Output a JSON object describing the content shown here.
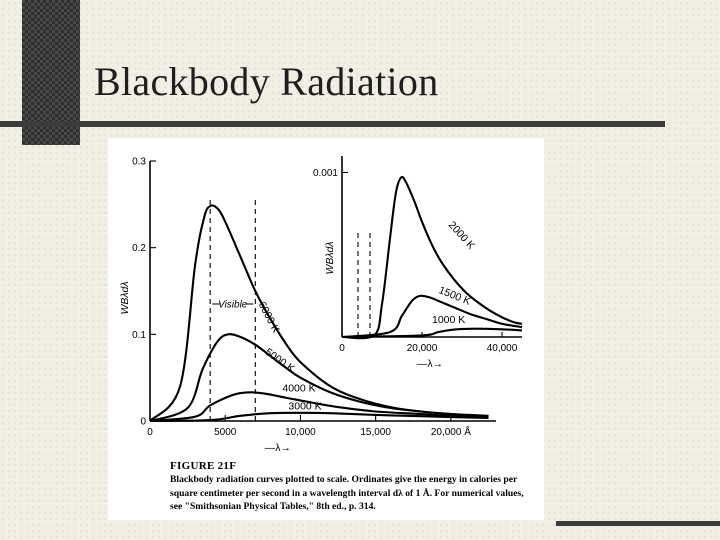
{
  "slide": {
    "title": "Blackbody Radiation",
    "colors": {
      "background": "#f1efe3",
      "accent": "#3c3c3c",
      "figure_bg": "#ffffff"
    }
  },
  "figure": {
    "label": "FIGURE 21F",
    "caption": "Blackbody radiation curves plotted to scale. Ordinates give the energy in calories per square centimeter per second in a wavelength interval dλ of 1 Å. For numerical values, see \"Smithsonian Physical Tables,\" 8th ed., p. 314."
  },
  "chart_data": [
    {
      "type": "line",
      "title": "",
      "xlabel": "—λ→",
      "ylabel": "WBλdλ",
      "xlim": [
        0,
        23000
      ],
      "ylim": [
        0,
        0.3
      ],
      "x_ticks": [
        {
          "value": 0,
          "label": "0"
        },
        {
          "value": 5000,
          "label": "5000"
        },
        {
          "value": 10000,
          "label": "10,000"
        },
        {
          "value": 15000,
          "label": "15,000"
        },
        {
          "value": 20000,
          "label": "20,000 Å"
        }
      ],
      "y_ticks": [
        {
          "value": 0,
          "label": "0"
        },
        {
          "value": 0.1,
          "label": "0.1"
        },
        {
          "value": 0.2,
          "label": "0.2"
        },
        {
          "value": 0.3,
          "label": "0.3"
        }
      ],
      "annotations": [
        {
          "text": "Visible",
          "range": [
            4000,
            7000
          ]
        }
      ],
      "series": [
        {
          "name": "6000 K",
          "values": [
            [
              0,
              0
            ],
            [
              2000,
              0.04
            ],
            [
              3000,
              0.18
            ],
            [
              3600,
              0.235
            ],
            [
              4000,
              0.248
            ],
            [
              4500,
              0.245
            ],
            [
              5000,
              0.23
            ],
            [
              6000,
              0.19
            ],
            [
              7000,
              0.15
            ],
            [
              8000,
              0.118
            ],
            [
              9000,
              0.09
            ],
            [
              10000,
              0.068
            ],
            [
              12000,
              0.04
            ],
            [
              14000,
              0.025
            ],
            [
              16000,
              0.016
            ],
            [
              18000,
              0.011
            ],
            [
              20000,
              0.008
            ],
            [
              22500,
              0.005
            ]
          ]
        },
        {
          "name": "5000 K",
          "values": [
            [
              0,
              0
            ],
            [
              2500,
              0.015
            ],
            [
              3500,
              0.06
            ],
            [
              4500,
              0.092
            ],
            [
              5200,
              0.1
            ],
            [
              6000,
              0.097
            ],
            [
              7000,
              0.088
            ],
            [
              8000,
              0.075
            ],
            [
              9000,
              0.062
            ],
            [
              10000,
              0.05
            ],
            [
              12000,
              0.033
            ],
            [
              14000,
              0.022
            ],
            [
              16000,
              0.015
            ],
            [
              18000,
              0.011
            ],
            [
              20000,
              0.008
            ],
            [
              22500,
              0.006
            ]
          ]
        },
        {
          "name": "4000 K",
          "values": [
            [
              0,
              0
            ],
            [
              3000,
              0.005
            ],
            [
              4000,
              0.018
            ],
            [
              5500,
              0.03
            ],
            [
              6500,
              0.033
            ],
            [
              7500,
              0.032
            ],
            [
              9000,
              0.027
            ],
            [
              10500,
              0.022
            ],
            [
              12500,
              0.016
            ],
            [
              15000,
              0.011
            ],
            [
              18000,
              0.008
            ],
            [
              20000,
              0.006
            ],
            [
              22500,
              0.005
            ]
          ]
        },
        {
          "name": "3000 K",
          "values": [
            [
              0,
              0
            ],
            [
              4000,
              0.001
            ],
            [
              6000,
              0.006
            ],
            [
              8000,
              0.009
            ],
            [
              10000,
              0.0095
            ],
            [
              12000,
              0.009
            ],
            [
              15000,
              0.007
            ],
            [
              18000,
              0.0055
            ],
            [
              20000,
              0.0045
            ],
            [
              22500,
              0.0035
            ]
          ]
        }
      ]
    },
    {
      "type": "line",
      "title": "",
      "xlabel": "—λ→",
      "ylabel": "WBλdλ",
      "xlim": [
        0,
        45000
      ],
      "ylim": [
        0,
        0.0011
      ],
      "x_ticks": [
        {
          "value": 0,
          "label": "0"
        },
        {
          "value": 20000,
          "label": "20,000"
        },
        {
          "value": 40000,
          "label": "40,000"
        }
      ],
      "y_ticks": [
        {
          "value": 0.001,
          "label": "0.001"
        }
      ],
      "annotations": [
        {
          "text": "Visible",
          "range": [
            4000,
            7000
          ]
        }
      ],
      "series": [
        {
          "name": "2000 K",
          "values": [
            [
              0,
              0
            ],
            [
              8000,
              1e-05
            ],
            [
              10000,
              0.0002
            ],
            [
              12000,
              0.0006
            ],
            [
              13500,
              0.00088
            ],
            [
              14800,
              0.00097
            ],
            [
              16000,
              0.00094
            ],
            [
              18000,
              0.00083
            ],
            [
              20000,
              0.0007
            ],
            [
              22500,
              0.00056
            ],
            [
              25000,
              0.00045
            ],
            [
              28000,
              0.00035
            ],
            [
              31000,
              0.00027
            ],
            [
              34000,
              0.00021
            ],
            [
              37000,
              0.00016
            ],
            [
              40000,
              0.00012
            ],
            [
              43000,
              9e-05
            ],
            [
              45000,
              8e-05
            ]
          ]
        },
        {
          "name": "1500 K",
          "values": [
            [
              0,
              0
            ],
            [
              12000,
              3e-05
            ],
            [
              15000,
              0.00013
            ],
            [
              17500,
              0.00022
            ],
            [
              19500,
              0.00025
            ],
            [
              22000,
              0.00024
            ],
            [
              25000,
              0.00021
            ],
            [
              28000,
              0.00018
            ],
            [
              32000,
              0.00014
            ],
            [
              36000,
              0.00011
            ],
            [
              40000,
              8e-05
            ],
            [
              45000,
              6e-05
            ]
          ]
        },
        {
          "name": "1000 K",
          "values": [
            [
              0,
              0
            ],
            [
              20000,
              1e-05
            ],
            [
              24000,
              3e-05
            ],
            [
              28000,
              4.5e-05
            ],
            [
              32000,
              5e-05
            ],
            [
              36000,
              5e-05
            ],
            [
              40000,
              4.7e-05
            ],
            [
              45000,
              4e-05
            ]
          ]
        }
      ]
    }
  ]
}
